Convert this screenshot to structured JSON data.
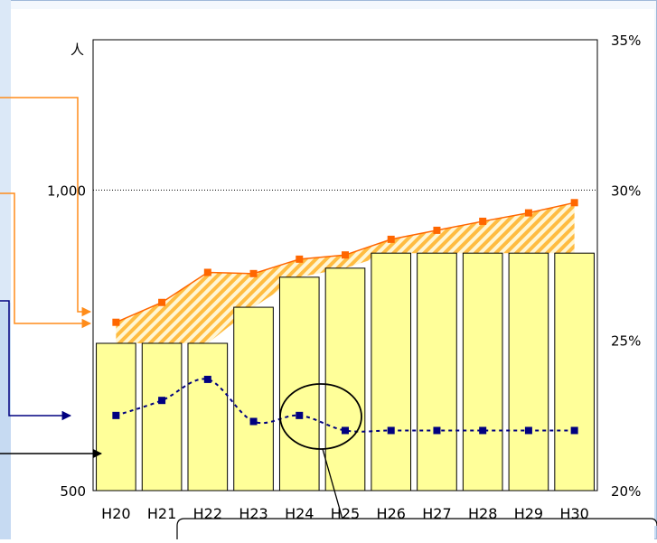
{
  "chart_data": {
    "type": "bar+line",
    "categories": [
      "H20",
      "H21",
      "H22",
      "H23",
      "H24",
      "H25",
      "H26",
      "H27",
      "H28",
      "H29",
      "H30"
    ],
    "left_axis": {
      "unit": "人",
      "range": [
        500,
        1250
      ],
      "tick_labels": [
        "500",
        "1,000"
      ],
      "ticks": [
        500,
        1000
      ],
      "reference_line": 1000
    },
    "right_axis": {
      "range": [
        20,
        35
      ],
      "tick_labels": [
        "20%",
        "25%",
        "30%",
        "35%"
      ],
      "ticks": [
        20,
        25,
        30,
        35
      ]
    },
    "series": [
      {
        "kind": "bar",
        "axis": "left",
        "values": [
          745,
          745,
          745,
          805,
          855,
          870,
          895,
          895,
          895,
          895,
          895
        ]
      },
      {
        "kind": "line",
        "axis": "left",
        "values": [
          780,
          813,
          863,
          861,
          885,
          892,
          918,
          933,
          948,
          962,
          979
        ]
      },
      {
        "kind": "line-dashed",
        "axis": "right",
        "values": [
          22.5,
          23.0,
          23.7,
          22.3,
          22.5,
          22.0,
          22.0,
          22.0,
          22.0,
          22.0,
          22.0
        ]
      }
    ],
    "gap_fill": "hatched",
    "grid": false
  },
  "colors": {
    "bar_fill": "#ffff99",
    "line_orange": "#ff6600",
    "line_navy": "#000080",
    "hatch": "#ffb020",
    "frame_bg": "#e6f0fa",
    "arrow_dark": "#000000"
  }
}
